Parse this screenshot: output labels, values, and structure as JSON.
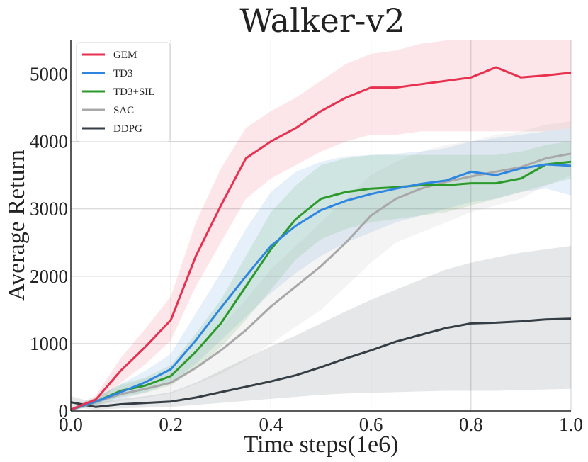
{
  "chart_data": {
    "type": "line",
    "title": "Walker-v2",
    "xlabel": "Time steps(1e6)",
    "ylabel": "Average Return",
    "xlim": [
      0.0,
      1.0
    ],
    "ylim": [
      0,
      5500
    ],
    "xticks": [
      0.0,
      0.2,
      0.4,
      0.6,
      0.8,
      1.0
    ],
    "xtick_labels": [
      "0.0",
      "0.2",
      "0.4",
      "0.6",
      "0.8",
      "1.0"
    ],
    "yticks": [
      0,
      1000,
      2000,
      3000,
      4000,
      5000
    ],
    "ytick_labels": [
      "0",
      "1000",
      "2000",
      "3000",
      "4000",
      "5000"
    ],
    "grid": true,
    "legend_position": "top-left",
    "x": [
      0.0,
      0.05,
      0.1,
      0.15,
      0.2,
      0.25,
      0.3,
      0.35,
      0.4,
      0.45,
      0.5,
      0.55,
      0.6,
      0.65,
      0.7,
      0.75,
      0.8,
      0.85,
      0.9,
      0.95,
      1.0
    ],
    "series": [
      {
        "name": "GEM",
        "color": "#e8304f",
        "values": [
          20,
          170,
          600,
          960,
          1350,
          2300,
          3050,
          3750,
          4000,
          4200,
          4450,
          4650,
          4800,
          4800,
          4850,
          4900,
          4950,
          5100,
          4950,
          4980,
          5020
        ],
        "lower": [
          0,
          120,
          420,
          700,
          1050,
          1850,
          2500,
          3150,
          3450,
          3650,
          3850,
          4000,
          4100,
          4100,
          4150,
          4150,
          4150,
          4150,
          4150,
          4150,
          4200
        ],
        "upper": [
          40,
          230,
          790,
          1230,
          1700,
          2800,
          3600,
          4200,
          4450,
          4650,
          4900,
          5150,
          5300,
          5350,
          5450,
          5500,
          5500,
          5500,
          5500,
          5500,
          5500
        ]
      },
      {
        "name": "TD3",
        "color": "#2f86e0",
        "values": [
          20,
          140,
          280,
          430,
          620,
          1050,
          1530,
          2000,
          2450,
          2750,
          2980,
          3120,
          3220,
          3300,
          3370,
          3420,
          3550,
          3500,
          3600,
          3660,
          3640
        ],
        "lower": [
          0,
          90,
          180,
          280,
          420,
          700,
          1050,
          1400,
          1750,
          2050,
          2300,
          2500,
          2650,
          2800,
          2900,
          3000,
          3100,
          3150,
          3250,
          3300,
          3200
        ],
        "upper": [
          40,
          200,
          400,
          600,
          850,
          1450,
          2050,
          2700,
          3250,
          3550,
          3700,
          3780,
          3800,
          3820,
          3850,
          3900,
          4000,
          4050,
          4100,
          4150,
          4200
        ]
      },
      {
        "name": "TD3+SIL",
        "color": "#2b9a2b",
        "values": [
          20,
          140,
          300,
          380,
          520,
          880,
          1300,
          1850,
          2400,
          2850,
          3150,
          3250,
          3300,
          3320,
          3350,
          3350,
          3380,
          3380,
          3450,
          3660,
          3700
        ],
        "lower": [
          0,
          90,
          210,
          270,
          380,
          620,
          950,
          1350,
          1800,
          2250,
          2550,
          2700,
          2800,
          2850,
          2900,
          2950,
          3050,
          3150,
          3250,
          3350,
          3450
        ],
        "upper": [
          40,
          200,
          400,
          500,
          680,
          1150,
          1650,
          2300,
          2950,
          3350,
          3650,
          3750,
          3800,
          3800,
          3800,
          3800,
          3800,
          3800,
          3850,
          3950,
          4000
        ]
      },
      {
        "name": "SAC",
        "color": "#a8a8a8",
        "values": [
          20,
          130,
          250,
          330,
          420,
          640,
          900,
          1200,
          1550,
          1850,
          2150,
          2500,
          2900,
          3150,
          3300,
          3400,
          3480,
          3550,
          3620,
          3750,
          3820
        ],
        "lower": [
          0,
          80,
          150,
          200,
          260,
          400,
          550,
          750,
          1000,
          1250,
          1500,
          1850,
          2200,
          2500,
          2650,
          2800,
          2950,
          3050,
          3150,
          3350,
          3500
        ],
        "upper": [
          40,
          200,
          370,
          480,
          600,
          900,
          1250,
          1650,
          2100,
          2450,
          2800,
          3150,
          3500,
          3700,
          3850,
          3950,
          4000,
          4100,
          4150,
          4250,
          4300
        ]
      },
      {
        "name": "DDPG",
        "color": "#353d45",
        "values": [
          130,
          60,
          100,
          120,
          140,
          200,
          280,
          360,
          440,
          530,
          650,
          780,
          900,
          1030,
          1130,
          1230,
          1300,
          1310,
          1330,
          1360,
          1370
        ],
        "lower": [
          60,
          20,
          40,
          50,
          60,
          90,
          120,
          150,
          180,
          210,
          240,
          260,
          270,
          280,
          290,
          300,
          300,
          300,
          310,
          320,
          330
        ],
        "upper": [
          220,
          120,
          180,
          220,
          280,
          420,
          600,
          780,
          960,
          1120,
          1300,
          1480,
          1650,
          1800,
          1950,
          2100,
          2200,
          2280,
          2350,
          2400,
          2450
        ]
      }
    ]
  }
}
